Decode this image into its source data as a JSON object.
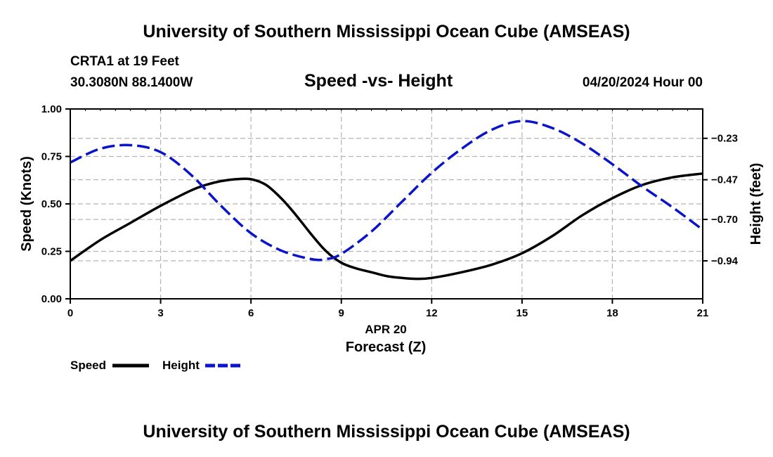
{
  "header": {
    "title": "University of Southern Mississippi Ocean Cube (AMSEAS)",
    "station": "CRTA1 at 19 Feet",
    "coords": "30.3080N  88.1400W",
    "subtitle": "Speed -vs- Height",
    "datetime": "04/20/2024 Hour 00"
  },
  "footer": {
    "title": "University of Southern Mississippi Ocean Cube (AMSEAS)"
  },
  "legend": {
    "speed_label": "Speed",
    "height_label": "Height"
  },
  "chart_data": {
    "type": "line",
    "title": "Speed -vs- Height",
    "xlabel_date": "APR 20",
    "xlabel": "Forecast (Z)",
    "ylabel": "Speed (Knots)",
    "y2label": "Height (feet)",
    "xlim": [
      0,
      21
    ],
    "ylim": [
      0,
      1
    ],
    "y2lim": [
      -1.16,
      -0.06
    ],
    "x_ticks": [
      0,
      3,
      6,
      9,
      12,
      15,
      18,
      21
    ],
    "y_ticks": [
      0.0,
      0.25,
      0.5,
      0.75,
      1.0
    ],
    "y_tick_labels": [
      "0.00",
      "0.25",
      "0.50",
      "0.75",
      "1.00"
    ],
    "y2_ticks": [
      -0.23,
      -0.47,
      -0.7,
      -0.94
    ],
    "y2_tick_labels": [
      "-0.23",
      "-0.47",
      "-0.70",
      "-0.94"
    ],
    "grid": true,
    "colors": {
      "speed": "#000000",
      "height": "#0a14c8",
      "grid": "#b4b4b4"
    },
    "series": [
      {
        "name": "Speed",
        "axis": "left",
        "style": "solid",
        "x": [
          0,
          1,
          2,
          3,
          4,
          4.5,
          5,
          5.5,
          6,
          6.5,
          7,
          7.5,
          8,
          8.5,
          9,
          9.5,
          10,
          10.5,
          11,
          11.5,
          12,
          13,
          14,
          15,
          16,
          17,
          18,
          19,
          20,
          21
        ],
        "values": [
          0.2,
          0.31,
          0.4,
          0.49,
          0.57,
          0.6,
          0.62,
          0.63,
          0.63,
          0.6,
          0.53,
          0.44,
          0.34,
          0.25,
          0.19,
          0.16,
          0.14,
          0.12,
          0.11,
          0.105,
          0.11,
          0.14,
          0.18,
          0.24,
          0.33,
          0.44,
          0.53,
          0.6,
          0.64,
          0.66
        ]
      },
      {
        "name": "Height",
        "axis": "right",
        "style": "dashed",
        "x": [
          0,
          1,
          2,
          3,
          4,
          5,
          6,
          7,
          8,
          8.5,
          9,
          10,
          11,
          12,
          13,
          14,
          15,
          16,
          17,
          18,
          19,
          20,
          21
        ],
        "values": [
          -0.37,
          -0.29,
          -0.27,
          -0.31,
          -0.44,
          -0.62,
          -0.78,
          -0.88,
          -0.93,
          -0.93,
          -0.9,
          -0.77,
          -0.6,
          -0.43,
          -0.29,
          -0.18,
          -0.13,
          -0.17,
          -0.26,
          -0.38,
          -0.51,
          -0.63,
          -0.76
        ]
      }
    ]
  }
}
